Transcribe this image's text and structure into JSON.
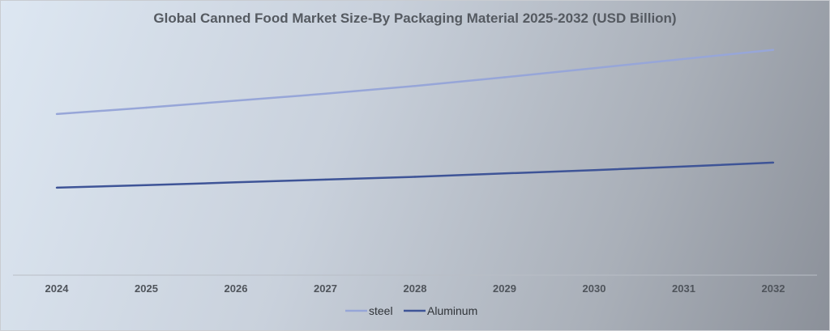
{
  "chart_data": {
    "type": "line",
    "title": "Global Canned Food Market Size-By Packaging Material 2025-2032 (USD Billion)",
    "x": [
      "2024",
      "2025",
      "2026",
      "2027",
      "2028",
      "2029",
      "2030",
      "2031",
      "2032"
    ],
    "series": [
      {
        "name": "steel",
        "color": "#97a6d8",
        "values": [
          58.0,
          60.3,
          62.8,
          65.3,
          68.1,
          71.2,
          74.5,
          77.8,
          81.1
        ]
      },
      {
        "name": "Aluminum",
        "color": "#3e5497",
        "values": [
          31.5,
          32.4,
          33.4,
          34.4,
          35.4,
          36.6,
          37.8,
          39.1,
          40.5
        ]
      }
    ],
    "ylim": [
      0,
      90
    ],
    "grid": false,
    "legend_position": "bottom"
  }
}
